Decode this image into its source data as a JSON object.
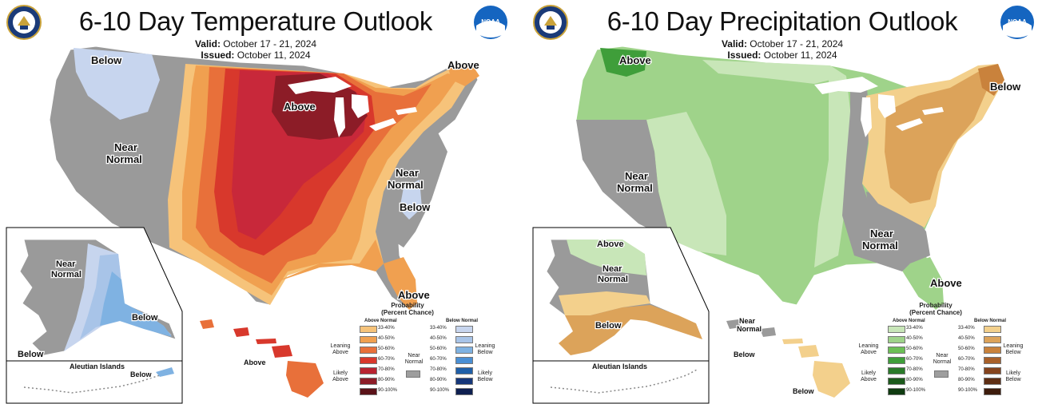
{
  "temperature": {
    "title": "6-10 Day Temperature Outlook",
    "valid_label": "Valid:",
    "valid_value": "October 17 - 21, 2024",
    "issued_label": "Issued:",
    "issued_value": "October 11, 2024",
    "labels": {
      "below_nw": "Below",
      "above_ne": "Above",
      "above_mw": "Above",
      "near_w_1": "Near",
      "near_w_2": "Normal",
      "near_e_1": "Near",
      "near_e_2": "Normal",
      "below_se": "Below",
      "above_fl": "Above",
      "ak_near_1": "Near",
      "ak_near_2": "Normal",
      "ak_below_se": "Below",
      "ak_below_sw": "Below",
      "aleutian_title": "Aleutian Islands",
      "aleutian_below": "Below",
      "hi_above": "Above"
    },
    "legend": {
      "title_1": "Probability",
      "title_2": "(Percent Chance)",
      "above_header": "Above Normal",
      "below_header": "Below Normal",
      "leaning_left_1": "Leaning",
      "leaning_left_2": "Above",
      "likely_left_1": "Likely",
      "likely_left_2": "Above",
      "near_1": "Near",
      "near_2": "Normal",
      "leaning_right_1": "Leaning",
      "leaning_right_2": "Below",
      "likely_right_1": "Likely",
      "likely_right_2": "Below",
      "ranges": [
        "33-40%",
        "40-50%",
        "50-60%",
        "60-70%",
        "70-80%",
        "80-90%",
        "90-100%"
      ],
      "above_colors": [
        "#f6c37a",
        "#f0a050",
        "#e8703a",
        "#d8382c",
        "#b82330",
        "#8c1c27",
        "#5a1218"
      ],
      "below_colors": [
        "#c7d5ee",
        "#a8c4e8",
        "#7fb2e2",
        "#4a8fd4",
        "#1f5fa8",
        "#16377a",
        "#0e1f50"
      ],
      "near_color": "#9e9e9e"
    }
  },
  "precipitation": {
    "title": "6-10 Day Precipitation Outlook",
    "valid_label": "Valid:",
    "valid_value": "October 17 - 21, 2024",
    "issued_label": "Issued:",
    "issued_value": "October 11, 2024",
    "labels": {
      "above_nw": "Above",
      "below_ne": "Below",
      "near_w_1": "Near",
      "near_w_2": "Normal",
      "near_se_1": "Near",
      "near_se_2": "Normal",
      "above_fl": "Above",
      "ak_above": "Above",
      "ak_near_1": "Near",
      "ak_near_2": "Normal",
      "ak_below": "Below",
      "aleutian_title": "Aleutian Islands",
      "hi_near_1": "Near",
      "hi_near_2": "Normal",
      "hi_below_1": "Below",
      "hi_below_2": "Below"
    },
    "legend": {
      "title_1": "Probability",
      "title_2": "(Percent Chance)",
      "above_header": "Above Normal",
      "below_header": "Below Normal",
      "leaning_left_1": "Leaning",
      "leaning_left_2": "Above",
      "likely_left_1": "Likely",
      "likely_left_2": "Above",
      "near_1": "Near",
      "near_2": "Normal",
      "leaning_right_1": "Leaning",
      "leaning_right_2": "Below",
      "likely_right_1": "Likely",
      "likely_right_2": "Below",
      "ranges": [
        "33-40%",
        "40-50%",
        "50-60%",
        "60-70%",
        "70-80%",
        "80-90%",
        "90-100%"
      ],
      "above_colors": [
        "#c8e6b8",
        "#9fd38a",
        "#6cbf56",
        "#3f9e3a",
        "#2a7a2a",
        "#1c5a1c",
        "#0f3b10"
      ],
      "below_colors": [
        "#f3d08c",
        "#dca35a",
        "#c9823c",
        "#a8602a",
        "#85441e",
        "#5e2e14",
        "#3d1c0c"
      ],
      "near_color": "#9e9e9e"
    }
  },
  "colors": {
    "near_gray": "#9a9a9a",
    "land_border": "#ffffff",
    "water": "#ffffff"
  }
}
